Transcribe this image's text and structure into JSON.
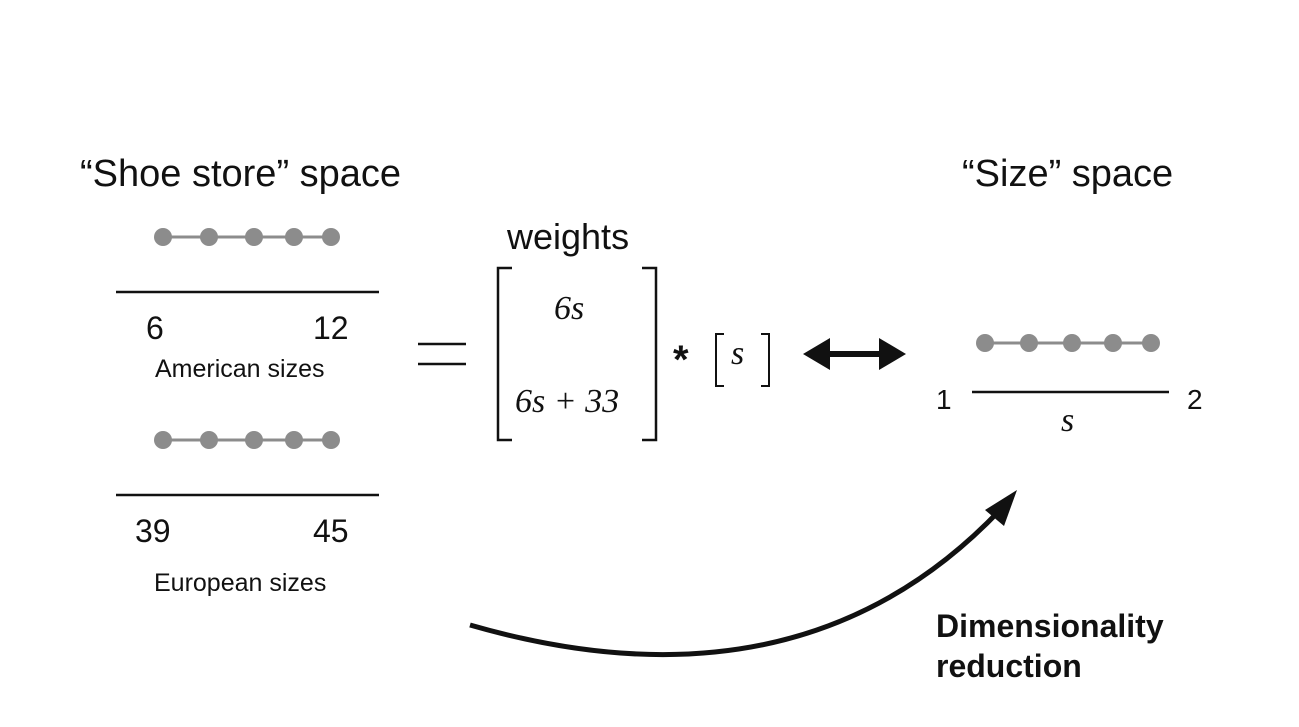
{
  "left": {
    "title": "“Shoe store” space",
    "american": {
      "min": "6",
      "max": "12",
      "caption": "American sizes",
      "points": 5
    },
    "european": {
      "min": "39",
      "max": "45",
      "caption": "European sizes",
      "points": 5
    }
  },
  "middle": {
    "equals": "=",
    "weights_label": "weights",
    "matrix": [
      "6s",
      "6s + 33"
    ],
    "times": "*",
    "vector": "s"
  },
  "right": {
    "title": "“Size” space",
    "min": "1",
    "max": "2",
    "axis_var": "s",
    "points": 5
  },
  "arrow_label": [
    "Dimensionality",
    "reduction"
  ],
  "colors": {
    "dot": "#8c8c8c",
    "line": "#111111"
  }
}
